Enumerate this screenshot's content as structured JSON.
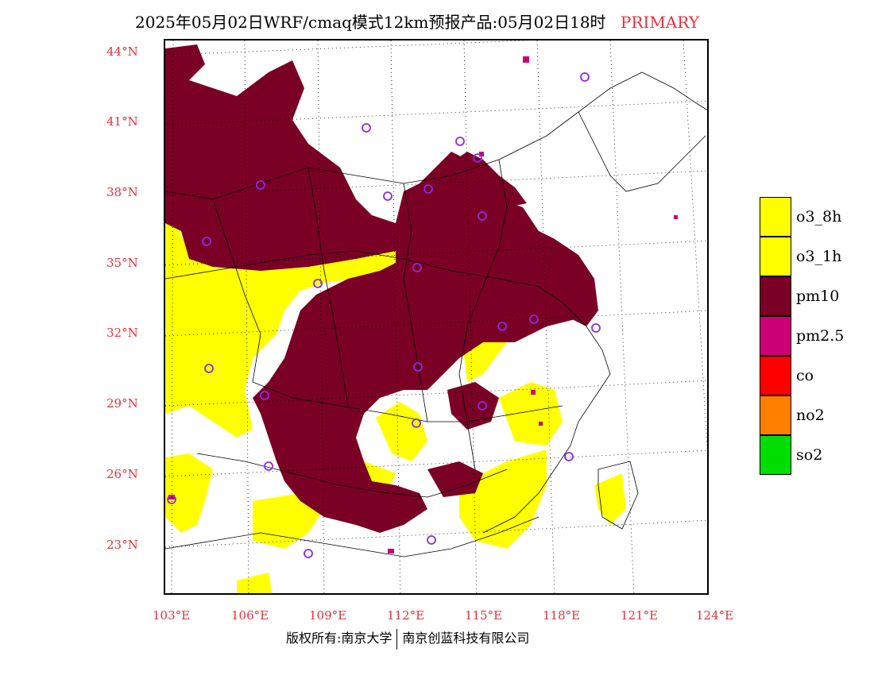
{
  "title": {
    "main": "2025年05月02日WRF/cmaq模式12km预报产品:05月02日18时",
    "tag": "PRIMARY"
  },
  "axes": {
    "lat_labels": [
      "44°N",
      "41°N",
      "38°N",
      "35°N",
      "32°N",
      "29°N",
      "26°N",
      "23°N"
    ],
    "lon_labels": [
      "103°E",
      "106°E",
      "109°E",
      "112°E",
      "115°E",
      "118°E",
      "121°E",
      "124°E"
    ]
  },
  "legend": [
    {
      "label": "o3_8h",
      "color": "#ffff00"
    },
    {
      "label": "o3_1h",
      "color": "#ffff00"
    },
    {
      "label": "pm10",
      "color": "#7a0026"
    },
    {
      "label": "pm2.5",
      "color": "#cc0077"
    },
    {
      "label": "co",
      "color": "#ff0000"
    },
    {
      "label": "no2",
      "color": "#ff7f00"
    },
    {
      "label": "so2",
      "color": "#00dd00"
    }
  ],
  "copyright": {
    "left": "版权所有:南京大学",
    "right": "南京创蓝科技有限公司"
  },
  "colors": {
    "pm10": "#7a0026",
    "o3": "#ffff00",
    "pm25": "#cc0077",
    "station": "#8a2be2",
    "label_red": "#e8303a"
  }
}
